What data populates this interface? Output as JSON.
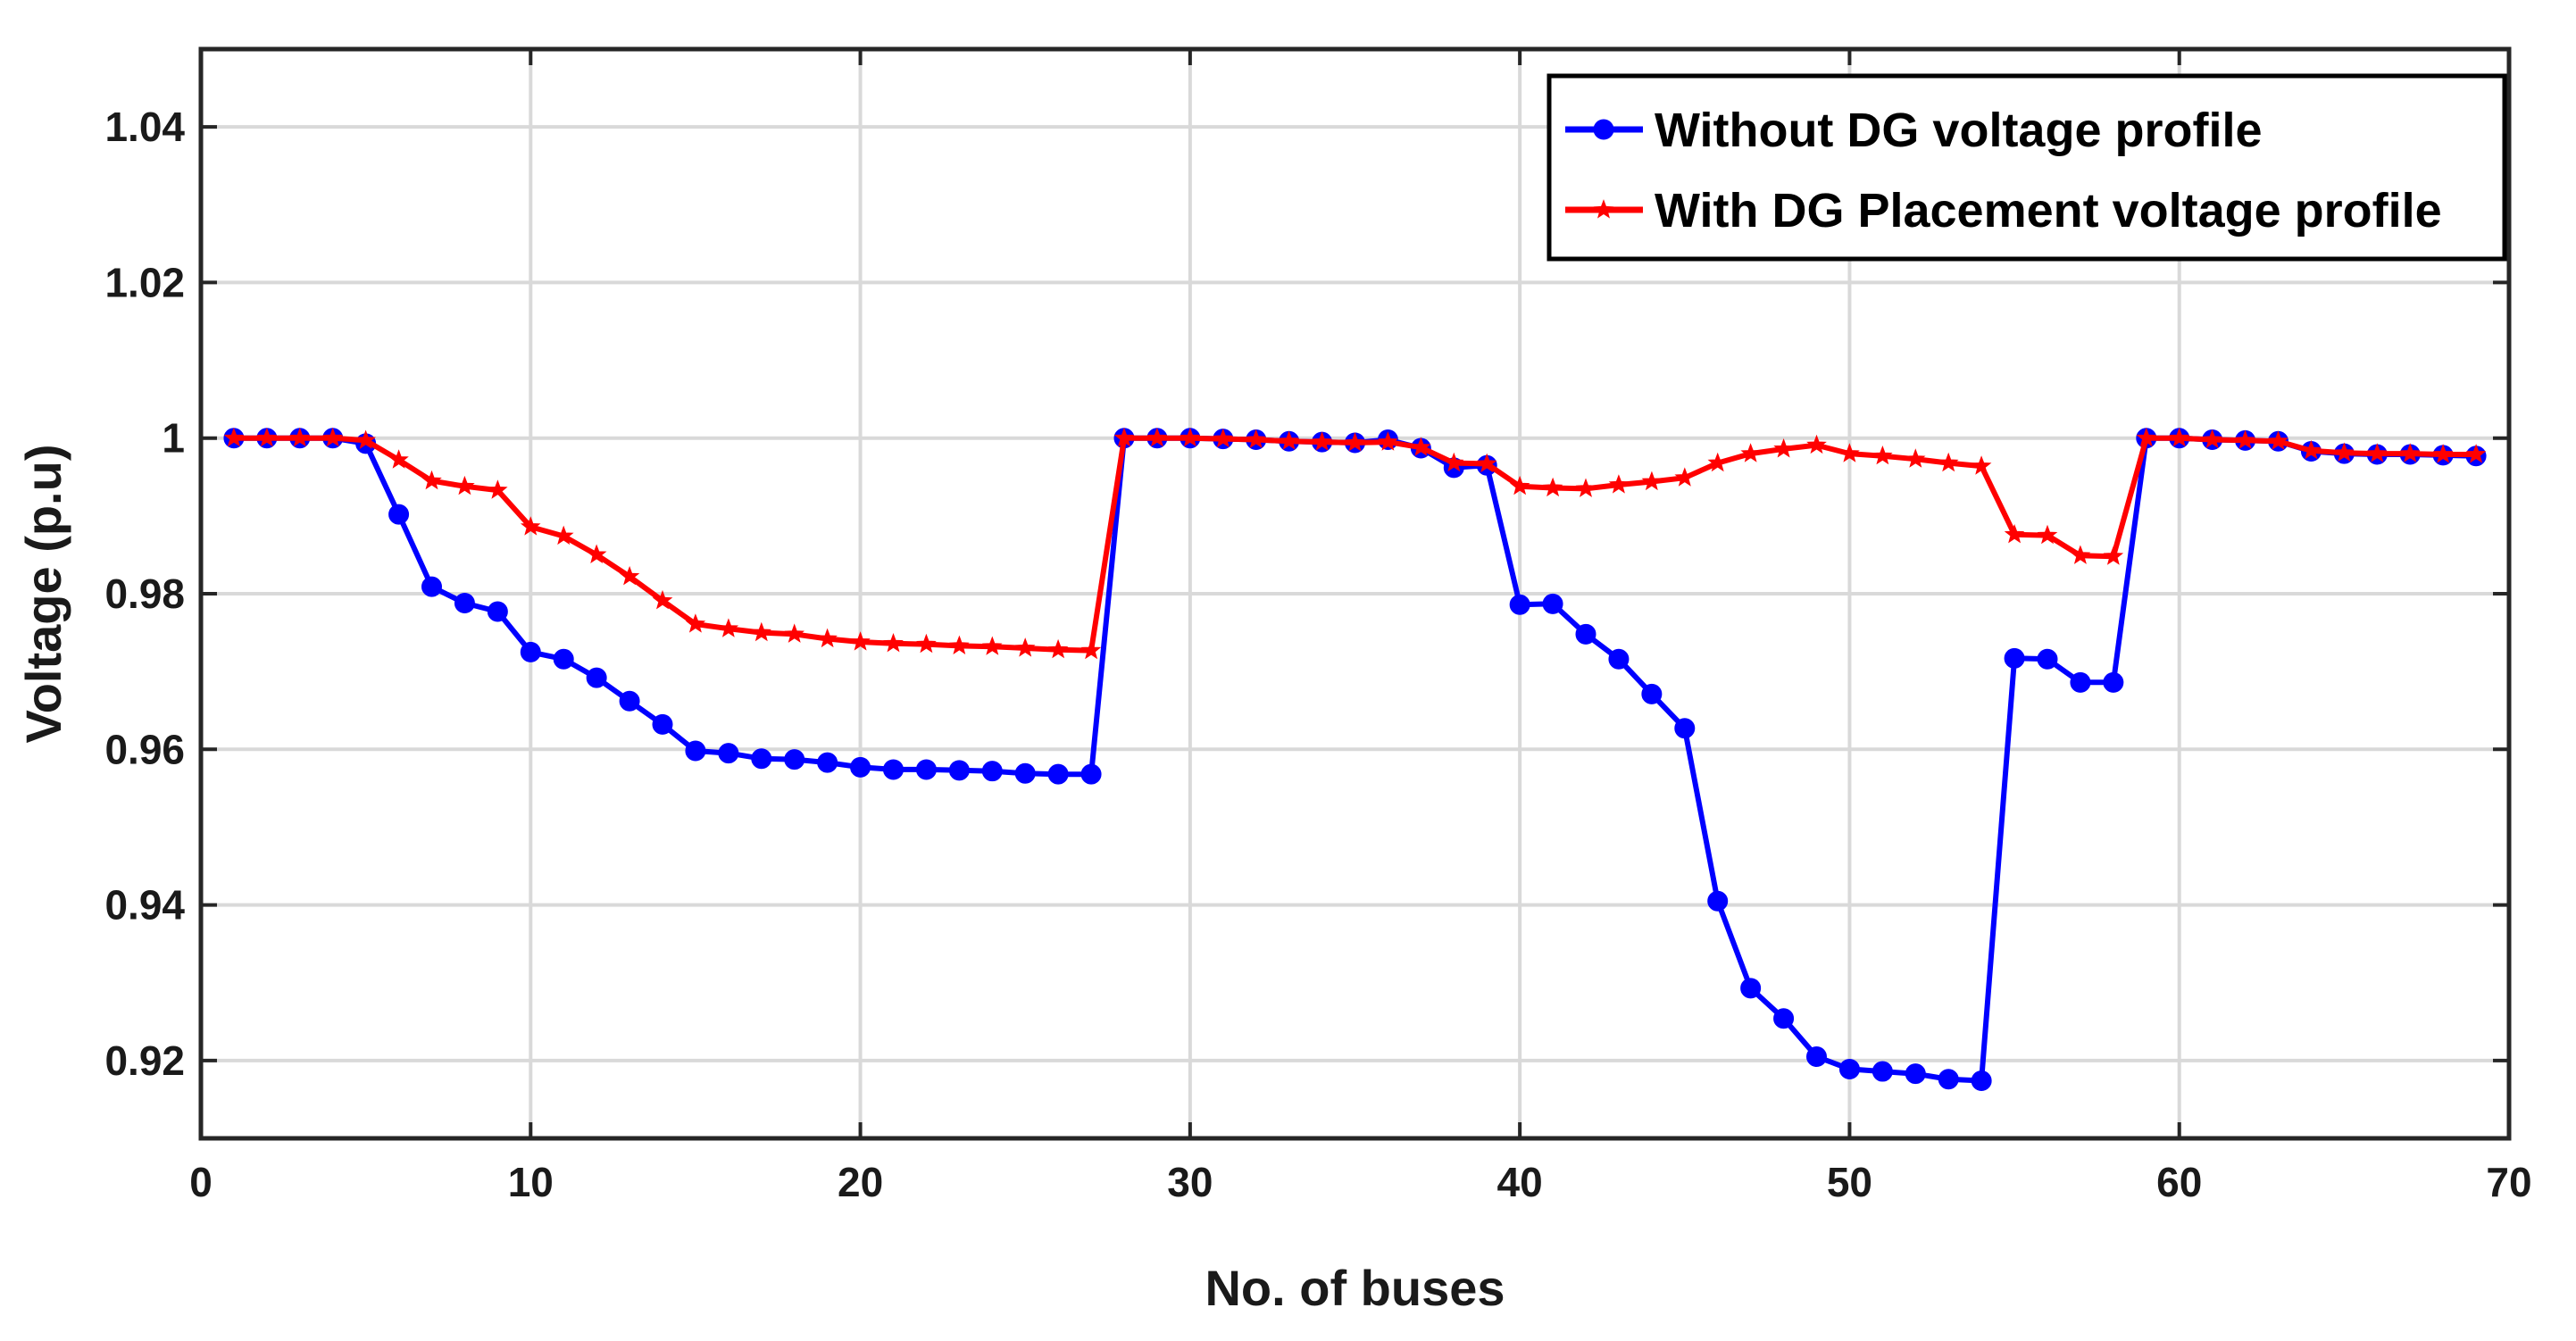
{
  "chart_data": {
    "type": "line",
    "xlabel": "No. of buses",
    "ylabel": "Voltage (p.u)",
    "xlim": [
      0,
      70
    ],
    "ylim": [
      0.91,
      1.05
    ],
    "xticks": [
      0,
      10,
      20,
      30,
      40,
      50,
      60,
      70
    ],
    "xtick_labels": [
      "0",
      "10",
      "20",
      "30",
      "40",
      "50",
      "60",
      "70"
    ],
    "yticks": [
      0.92,
      0.94,
      0.96,
      0.98,
      1.0,
      1.02,
      1.04
    ],
    "ytick_labels": [
      "0.92",
      "0.94",
      "0.96",
      "0.98",
      "1",
      "1.02",
      "1.04"
    ],
    "grid": true,
    "legend_position": "top-right",
    "x": [
      1,
      2,
      3,
      4,
      5,
      6,
      7,
      8,
      9,
      10,
      11,
      12,
      13,
      14,
      15,
      16,
      17,
      18,
      19,
      20,
      21,
      22,
      23,
      24,
      25,
      26,
      27,
      28,
      29,
      30,
      31,
      32,
      33,
      34,
      35,
      36,
      37,
      38,
      39,
      40,
      41,
      42,
      43,
      44,
      45,
      46,
      47,
      48,
      49,
      50,
      51,
      52,
      53,
      54,
      55,
      56,
      57,
      58,
      59,
      60,
      61,
      62,
      63,
      64,
      65,
      66,
      67,
      68,
      69
    ],
    "series": [
      {
        "name": "Without DG voltage profile",
        "color": "#0000ff",
        "marker": "circle",
        "values": [
          1.0,
          1.0,
          1.0,
          1.0,
          0.9993,
          0.9902,
          0.9809,
          0.9788,
          0.9777,
          0.9725,
          0.9716,
          0.9692,
          0.9662,
          0.9632,
          0.9598,
          0.9595,
          0.9588,
          0.9587,
          0.9583,
          0.9577,
          0.9574,
          0.9574,
          0.9573,
          0.9572,
          0.9569,
          0.9568,
          0.9568,
          1.0,
          1.0,
          1.0,
          0.9999,
          0.9998,
          0.9996,
          0.9995,
          0.9994,
          0.9998,
          0.9987,
          0.9962,
          0.9965,
          0.9786,
          0.9787,
          0.9748,
          0.9716,
          0.9671,
          0.9627,
          0.9405,
          0.9293,
          0.9254,
          0.9205,
          0.9189,
          0.9186,
          0.9183,
          0.9176,
          0.9174,
          0.9717,
          0.9716,
          0.9686,
          0.9686,
          1.0,
          1.0,
          0.9998,
          0.9997,
          0.9996,
          0.9983,
          0.998,
          0.9979,
          0.9979,
          0.9978,
          0.9977
        ]
      },
      {
        "name": "With DG Placement voltage profile",
        "color": "#ff0000",
        "marker": "star",
        "values": [
          1.0,
          1.0,
          1.0,
          1.0,
          0.9997,
          0.9972,
          0.9945,
          0.9938,
          0.9933,
          0.9886,
          0.9874,
          0.985,
          0.9822,
          0.9791,
          0.9761,
          0.9755,
          0.975,
          0.9748,
          0.9742,
          0.9738,
          0.9736,
          0.9735,
          0.9733,
          0.9732,
          0.973,
          0.9728,
          0.9727,
          1.0,
          1.0,
          1.0,
          0.9999,
          0.9998,
          0.9996,
          0.9995,
          0.9994,
          0.9995,
          0.9988,
          0.9968,
          0.9967,
          0.9938,
          0.9936,
          0.9935,
          0.994,
          0.9944,
          0.9949,
          0.9968,
          0.998,
          0.9986,
          0.9991,
          0.998,
          0.9977,
          0.9973,
          0.9968,
          0.9964,
          0.9876,
          0.9875,
          0.9849,
          0.9848,
          1.0,
          1.0,
          0.9998,
          0.9997,
          0.9996,
          0.9984,
          0.9981,
          0.998,
          0.998,
          0.9979,
          0.9979
        ]
      }
    ]
  }
}
